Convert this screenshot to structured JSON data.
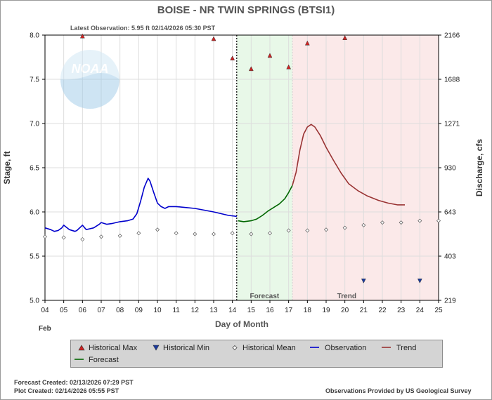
{
  "header": {
    "title": "BOISE - NR TWIN SPRINGS  (BTSI1)",
    "latest_observation": "Latest Observation: 5.95 ft 02/14/2026 05:30 PST"
  },
  "footer": {
    "forecast_created": "Forecast Created: 02/13/2026 07:29 PST",
    "plot_created": "Plot Created: 02/14/2026 05:55 PST",
    "source": "Observations Provided by US Geological Survey"
  },
  "colors": {
    "observation": "#0000cc",
    "forecast": "#006600",
    "trend": "#993333",
    "hist_max": "#cc2222",
    "hist_min": "#1a3aa0",
    "forecast_band": "#e8f8e8",
    "trend_band": "#fbe9e9",
    "grid": "#dddddd"
  },
  "chart_data": {
    "type": "line",
    "xlabel": "Day of Month",
    "ylabel": "Stage, ft",
    "y2label": "Discharge, cfs",
    "month_label": "Feb",
    "xlim": [
      4,
      25
    ],
    "ylim": [
      5.0,
      8.0
    ],
    "x_ticks": [
      "04",
      "05",
      "06",
      "07",
      "08",
      "09",
      "10",
      "11",
      "12",
      "13",
      "14",
      "15",
      "16",
      "17",
      "18",
      "19",
      "20",
      "21",
      "22",
      "23",
      "24",
      "25"
    ],
    "y_ticks": [
      "5.0",
      "5.5",
      "6.0",
      "6.5",
      "7.0",
      "7.5",
      "8.0"
    ],
    "y2_ticks": [
      {
        "stage": 5.0,
        "label": "219"
      },
      {
        "stage": 5.5,
        "label": "403"
      },
      {
        "stage": 6.0,
        "label": "643"
      },
      {
        "stage": 6.5,
        "label": "930"
      },
      {
        "stage": 7.0,
        "label": "1271"
      },
      {
        "stage": 7.5,
        "label": "1688"
      },
      {
        "stage": 8.0,
        "label": "2166"
      }
    ],
    "now_x": 14.23,
    "forecast_region": {
      "x0": 14.23,
      "x1": 17.2,
      "label": "Forecast"
    },
    "trend_region": {
      "x0": 17.2,
      "x1": 25.0,
      "label": "Trend"
    },
    "series": [
      {
        "name": "Observation",
        "x": [
          4.0,
          4.3,
          4.5,
          4.7,
          4.9,
          5.0,
          5.3,
          5.6,
          5.7,
          5.9,
          6.0,
          6.2,
          6.6,
          6.9,
          7.0,
          7.3,
          7.6,
          8.0,
          8.4,
          8.7,
          8.9,
          9.1,
          9.3,
          9.5,
          9.6,
          9.8,
          10.0,
          10.2,
          10.4,
          10.6,
          11.0,
          11.5,
          12.0,
          12.5,
          13.0,
          13.4,
          13.8,
          14.23
        ],
        "y": [
          5.82,
          5.8,
          5.78,
          5.79,
          5.82,
          5.85,
          5.8,
          5.78,
          5.79,
          5.83,
          5.85,
          5.8,
          5.82,
          5.86,
          5.88,
          5.86,
          5.87,
          5.89,
          5.9,
          5.92,
          5.98,
          6.12,
          6.28,
          6.38,
          6.35,
          6.22,
          6.1,
          6.06,
          6.04,
          6.06,
          6.06,
          6.05,
          6.04,
          6.02,
          6.0,
          5.98,
          5.96,
          5.95
        ]
      },
      {
        "name": "Forecast",
        "x": [
          14.3,
          14.6,
          15.0,
          15.3,
          15.6,
          15.9,
          16.2,
          16.5,
          16.8,
          17.0,
          17.2
        ],
        "y": [
          5.9,
          5.89,
          5.9,
          5.92,
          5.96,
          6.01,
          6.05,
          6.09,
          6.15,
          6.22,
          6.3
        ]
      },
      {
        "name": "Trend",
        "x": [
          17.2,
          17.4,
          17.6,
          17.8,
          18.0,
          18.2,
          18.4,
          18.7,
          19.0,
          19.4,
          19.8,
          20.2,
          20.7,
          21.2,
          21.8,
          22.3,
          22.8,
          23.2
        ],
        "y": [
          6.3,
          6.45,
          6.7,
          6.88,
          6.96,
          6.99,
          6.96,
          6.86,
          6.73,
          6.58,
          6.44,
          6.32,
          6.24,
          6.18,
          6.13,
          6.1,
          6.08,
          6.08
        ]
      },
      {
        "name": "Historical Max",
        "x": [
          6.0,
          13.0,
          14.0,
          15.0,
          16.0,
          17.0,
          18.0,
          20.0
        ],
        "y": [
          7.99,
          7.96,
          7.74,
          7.62,
          7.77,
          7.64,
          7.91,
          7.97
        ]
      },
      {
        "name": "Historical Min",
        "x": [
          21.0,
          24.0
        ],
        "y": [
          5.22,
          5.22
        ]
      },
      {
        "name": "Historical Mean",
        "x": [
          4.0,
          5.0,
          6.0,
          7.0,
          8.0,
          9.0,
          10.0,
          11.0,
          12.0,
          13.0,
          14.0,
          15.0,
          16.0,
          17.0,
          18.0,
          19.0,
          20.0,
          21.0,
          22.0,
          23.0,
          24.0,
          25.0
        ],
        "y": [
          5.72,
          5.71,
          5.69,
          5.72,
          5.73,
          5.76,
          5.8,
          5.76,
          5.75,
          5.75,
          5.76,
          5.75,
          5.76,
          5.79,
          5.79,
          5.8,
          5.82,
          5.85,
          5.88,
          5.88,
          5.9,
          5.9
        ]
      }
    ]
  },
  "legend": {
    "items": [
      {
        "label": "Historical Max"
      },
      {
        "label": "Historical Min"
      },
      {
        "label": "Historical Mean"
      },
      {
        "label": "Observation"
      },
      {
        "label": "Trend"
      },
      {
        "label": "Forecast"
      }
    ]
  }
}
